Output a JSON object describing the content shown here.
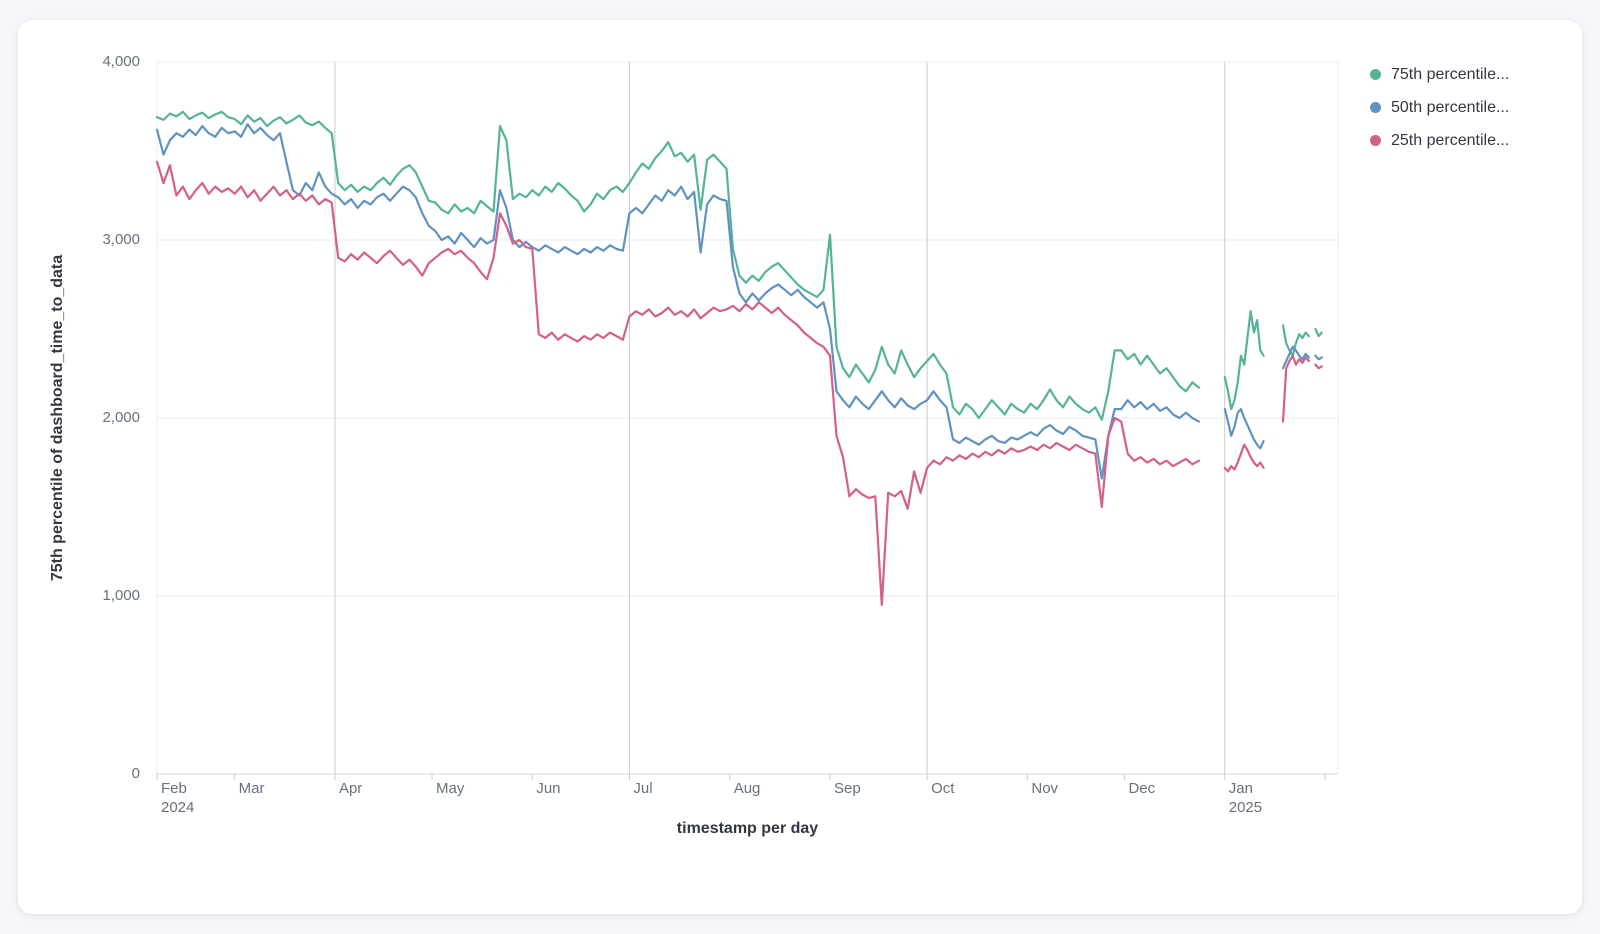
{
  "panel": {
    "background": "#f5f6fb",
    "card_background": "#ffffff"
  },
  "chart_data": {
    "type": "line",
    "title": "",
    "xlabel": "timestamp per day",
    "ylabel": "75th percentile of dashboard_time_to_data",
    "ylim": [
      0,
      4000
    ],
    "grid": true,
    "legend_position": "right",
    "x_domain_days": 365,
    "x_start": "Feb 2024",
    "x_end": "Feb 2025",
    "y_ticks": [
      {
        "value": 4000,
        "label": "4,000"
      },
      {
        "value": 3000,
        "label": "3,000"
      },
      {
        "value": 2000,
        "label": "2,000"
      },
      {
        "value": 1000,
        "label": "1,000"
      },
      {
        "value": 0,
        "label": "0"
      }
    ],
    "x_ticks": [
      {
        "day": 0,
        "label": "Feb",
        "year": "2024"
      },
      {
        "day": 24,
        "label": "Mar"
      },
      {
        "day": 55,
        "label": "Apr"
      },
      {
        "day": 85,
        "label": "May"
      },
      {
        "day": 116,
        "label": "Jun"
      },
      {
        "day": 146,
        "label": "Jul"
      },
      {
        "day": 177,
        "label": "Aug"
      },
      {
        "day": 208,
        "label": "Sep"
      },
      {
        "day": 238,
        "label": "Oct"
      },
      {
        "day": 269,
        "label": "Nov"
      },
      {
        "day": 299,
        "label": "Dec"
      },
      {
        "day": 330,
        "label": "Jan",
        "year": "2025"
      },
      {
        "day": 361,
        "label": ""
      }
    ],
    "quarter_gridline_days": [
      55,
      146,
      238,
      330
    ],
    "palette": {
      "green": "#54B399",
      "blue": "#6092C0",
      "pink": "#D36086",
      "h_grid": "#e9ebf2",
      "v_grid": "#c6cad2",
      "plot_border": "#eceef4",
      "axis_line": "#d6dbe2",
      "tick": "#c6cad2",
      "tick_text": "#69707d",
      "title_text": "#343741"
    },
    "legend": [
      {
        "label": "75th percentile...",
        "color": "#54B399"
      },
      {
        "label": "50th percentile...",
        "color": "#6092C0"
      },
      {
        "label": "25th percentile...",
        "color": "#D36086"
      }
    ],
    "series": [
      {
        "name": "75th percentile...",
        "color": "#54B399",
        "segments": [
          {
            "start_day": 0,
            "step": 2,
            "values": [
              3690,
              3675,
              3710,
              3695,
              3720,
              3680,
              3700,
              3715,
              3685,
              3705,
              3720,
              3690,
              3680,
              3650,
              3700,
              3665,
              3685,
              3640,
              3670,
              3690,
              3655,
              3675,
              3700,
              3660,
              3645,
              3665,
              3630,
              3600,
              3320,
              3280,
              3310,
              3270,
              3300,
              3280,
              3320,
              3350,
              3310,
              3360,
              3400,
              3420,
              3380,
              3300,
              3220,
              3210,
              3170,
              3150,
              3200,
              3160,
              3180,
              3150,
              3220,
              3190,
              3160,
              3640,
              3560,
              3230,
              3260,
              3240,
              3280,
              3250,
              3300,
              3270,
              3320,
              3290,
              3250,
              3220,
              3160,
              3200,
              3260,
              3230,
              3280,
              3300,
              3270,
              3320,
              3380,
              3430,
              3400,
              3460,
              3500,
              3550,
              3470,
              3490,
              3440,
              3480,
              3170,
              3450,
              3480,
              3440,
              3400,
              2950,
              2800,
              2760,
              2800,
              2770,
              2820,
              2850,
              2870,
              2830,
              2790,
              2750,
              2720,
              2700,
              2680,
              2720,
              3030,
              2400,
              2280,
              2230,
              2300,
              2250,
              2200,
              2270,
              2400,
              2300,
              2250,
              2380,
              2300,
              2230,
              2280,
              2320,
              2360,
              2300,
              2250,
              2060,
              2020,
              2080,
              2050,
              2000,
              2050,
              2100,
              2060,
              2020,
              2080,
              2050,
              2030,
              2080,
              2050,
              2100,
              2160,
              2100,
              2060,
              2120,
              2080,
              2050,
              2030,
              2060,
              1990,
              2150,
              2380,
              2380,
              2330,
              2360,
              2300,
              2350,
              2300,
              2250,
              2280,
              2230,
              2180,
              2150,
              2200,
              2170
            ]
          },
          {
            "start_day": 330,
            "step": 1,
            "values": [
              2230,
              2150,
              2050,
              2100,
              2200,
              2350,
              2300,
              2450,
              2600,
              2480,
              2550,
              2380,
              2350
            ]
          },
          {
            "start_day": 348,
            "step": 1,
            "values": [
              2520,
              2420,
              2380,
              2350,
              2420,
              2470,
              2450,
              2480,
              2460
            ]
          },
          {
            "start_day": 358,
            "step": 1,
            "values": [
              2500,
              2460,
              2480
            ]
          }
        ]
      },
      {
        "name": "50th percentile...",
        "color": "#6092C0",
        "segments": [
          {
            "start_day": 0,
            "step": 2,
            "values": [
              3620,
              3480,
              3560,
              3600,
              3580,
              3620,
              3590,
              3640,
              3600,
              3580,
              3630,
              3600,
              3610,
              3580,
              3650,
              3600,
              3630,
              3590,
              3560,
              3600,
              3440,
              3280,
              3250,
              3320,
              3280,
              3380,
              3300,
              3260,
              3240,
              3200,
              3230,
              3180,
              3220,
              3200,
              3240,
              3260,
              3220,
              3260,
              3300,
              3280,
              3240,
              3150,
              3080,
              3050,
              3000,
              3020,
              2980,
              3040,
              3000,
              2960,
              3010,
              2980,
              3000,
              3280,
              3180,
              3000,
              2960,
              2990,
              2960,
              2940,
              2970,
              2950,
              2930,
              2960,
              2940,
              2920,
              2950,
              2930,
              2960,
              2940,
              2970,
              2950,
              2940,
              3150,
              3180,
              3150,
              3200,
              3250,
              3220,
              3280,
              3250,
              3300,
              3230,
              3270,
              2930,
              3200,
              3250,
              3230,
              3220,
              2850,
              2700,
              2650,
              2700,
              2660,
              2700,
              2730,
              2750,
              2720,
              2690,
              2720,
              2680,
              2650,
              2620,
              2650,
              2500,
              2150,
              2100,
              2060,
              2120,
              2080,
              2050,
              2100,
              2150,
              2100,
              2060,
              2110,
              2070,
              2050,
              2080,
              2100,
              2150,
              2100,
              2060,
              1880,
              1860,
              1890,
              1870,
              1850,
              1880,
              1900,
              1870,
              1860,
              1890,
              1880,
              1900,
              1920,
              1900,
              1940,
              1960,
              1930,
              1910,
              1950,
              1930,
              1900,
              1890,
              1880,
              1660,
              1900,
              2050,
              2050,
              2100,
              2060,
              2090,
              2050,
              2080,
              2040,
              2060,
              2020,
              2000,
              2030,
              2000,
              1980
            ]
          },
          {
            "start_day": 330,
            "step": 1,
            "values": [
              2050,
              1980,
              1900,
              1950,
              2030,
              2050,
              2000,
              1960,
              1920,
              1880,
              1850,
              1830,
              1870
            ]
          },
          {
            "start_day": 348,
            "step": 1,
            "values": [
              2280,
              2320,
              2360,
              2400,
              2380,
              2350,
              2330,
              2360,
              2340
            ]
          },
          {
            "start_day": 358,
            "step": 1,
            "values": [
              2350,
              2330,
              2340
            ]
          }
        ]
      },
      {
        "name": "25th percentile...",
        "color": "#D36086",
        "segments": [
          {
            "start_day": 0,
            "step": 2,
            "values": [
              3440,
              3320,
              3420,
              3250,
              3300,
              3230,
              3280,
              3320,
              3260,
              3300,
              3270,
              3290,
              3260,
              3300,
              3240,
              3280,
              3220,
              3260,
              3300,
              3250,
              3280,
              3230,
              3260,
              3220,
              3250,
              3200,
              3230,
              3210,
              2900,
              2880,
              2920,
              2890,
              2930,
              2900,
              2870,
              2910,
              2940,
              2900,
              2860,
              2890,
              2850,
              2800,
              2870,
              2900,
              2930,
              2950,
              2920,
              2940,
              2900,
              2870,
              2820,
              2780,
              2900,
              3150,
              3080,
              2980,
              3000,
              2960,
              2950,
              2470,
              2450,
              2480,
              2440,
              2470,
              2450,
              2430,
              2460,
              2440,
              2470,
              2450,
              2480,
              2460,
              2440,
              2570,
              2600,
              2580,
              2610,
              2570,
              2590,
              2620,
              2580,
              2600,
              2570,
              2610,
              2560,
              2590,
              2620,
              2600,
              2610,
              2630,
              2600,
              2640,
              2610,
              2650,
              2620,
              2590,
              2620,
              2580,
              2550,
              2520,
              2480,
              2450,
              2420,
              2400,
              2350,
              1900,
              1780,
              1560,
              1600,
              1570,
              1550,
              1560,
              950,
              1580,
              1560,
              1590,
              1490,
              1700,
              1580,
              1720,
              1760,
              1740,
              1780,
              1760,
              1790,
              1770,
              1800,
              1780,
              1810,
              1790,
              1820,
              1800,
              1830,
              1810,
              1820,
              1840,
              1820,
              1850,
              1830,
              1860,
              1840,
              1820,
              1850,
              1830,
              1810,
              1800,
              1500,
              1900,
              2000,
              1980,
              1800,
              1760,
              1780,
              1750,
              1770,
              1740,
              1760,
              1730,
              1750,
              1770,
              1740,
              1760
            ]
          },
          {
            "start_day": 330,
            "step": 1,
            "values": [
              1720,
              1700,
              1730,
              1710,
              1750,
              1800,
              1850,
              1820,
              1780,
              1750,
              1730,
              1750,
              1720
            ]
          },
          {
            "start_day": 348,
            "step": 1,
            "values": [
              1980,
              2280,
              2320,
              2350,
              2300,
              2330,
              2310,
              2340,
              2320
            ]
          },
          {
            "start_day": 358,
            "step": 1,
            "values": [
              2300,
              2280,
              2290
            ]
          }
        ]
      }
    ]
  }
}
